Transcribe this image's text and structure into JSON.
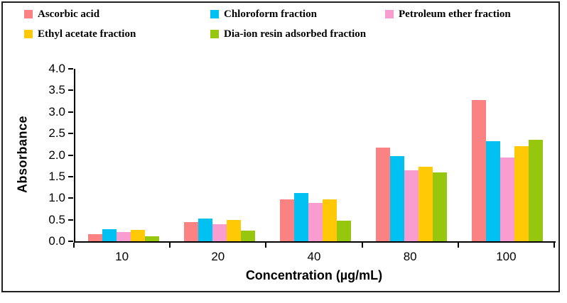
{
  "chart_data": {
    "type": "bar",
    "title": "",
    "categories": [
      "10",
      "20",
      "40",
      "80",
      "100"
    ],
    "series": [
      {
        "name": "Ascorbic acid",
        "color": "#FA8282",
        "values": [
          0.16,
          0.45,
          0.97,
          2.17,
          3.28
        ]
      },
      {
        "name": "Chloroform fraction",
        "color": "#00C1F1",
        "values": [
          0.28,
          0.53,
          1.12,
          1.97,
          2.32
        ]
      },
      {
        "name": "Petroleum ether fraction",
        "color": "#F99CD0",
        "values": [
          0.22,
          0.4,
          0.89,
          1.65,
          1.95
        ]
      },
      {
        "name": "Ethyl acetate fraction",
        "color": "#FFC905",
        "values": [
          0.27,
          0.5,
          0.97,
          1.73,
          2.2
        ]
      },
      {
        "name": "Dia-ion resin adsorbed fraction",
        "color": "#96C60E",
        "values": [
          0.12,
          0.25,
          0.47,
          1.6,
          2.35
        ]
      }
    ],
    "xlabel": "Concentration (µg/mL)",
    "ylabel": "Absorbance",
    "ylim": [
      0,
      4
    ],
    "ytick_step": 0.5,
    "ytick_decimals": 1,
    "grid": false,
    "legend_position": "top-left-two-rows",
    "axis_color": "#000000",
    "frame_color": "#1f1f1f"
  }
}
